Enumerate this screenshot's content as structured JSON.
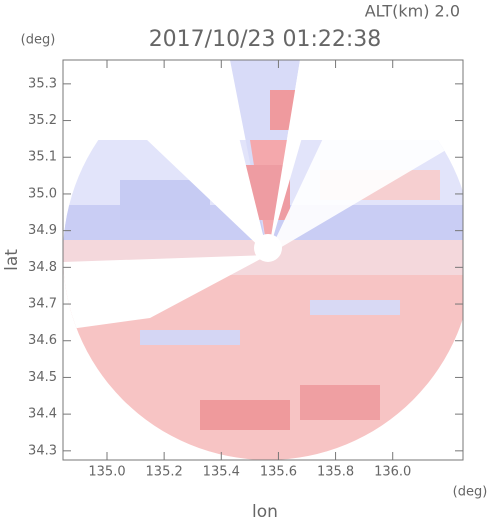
{
  "chart_data": {
    "type": "radar-field",
    "title": "2017/10/23 01:22:38",
    "subtitle": "ALT(km) 2.0",
    "x_label": "lon",
    "y_label": "lat",
    "x_unit": "(deg)",
    "y_unit": "(deg)",
    "xlim": [
      134.846,
      136.246
    ],
    "ylim": [
      34.275,
      35.365
    ],
    "xticks": [
      {
        "value": 135,
        "label": "135.0"
      },
      135.2,
      135.4,
      135.6,
      135.8,
      {
        "value": 136,
        "label": "136.0"
      }
    ],
    "yticks": [
      34.3,
      34.4,
      34.5,
      34.6,
      34.7,
      34.8,
      34.9,
      {
        "value": 35,
        "label": "35.0"
      },
      35.1,
      35.2,
      35.3
    ]
  }
}
